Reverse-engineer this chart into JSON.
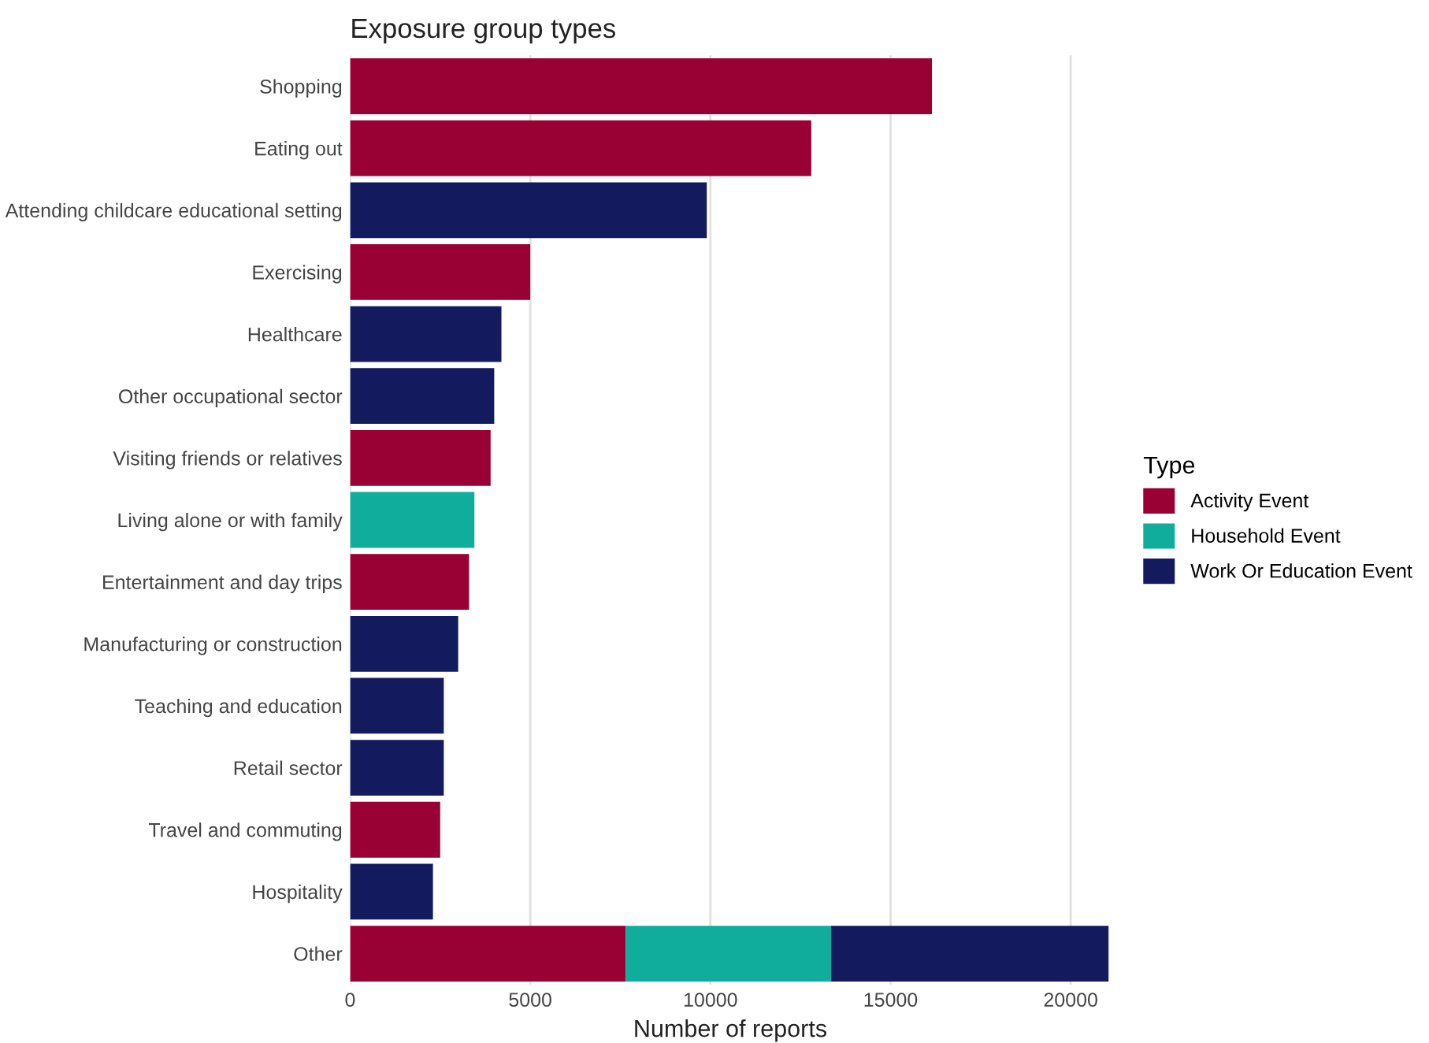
{
  "chart_data": {
    "type": "bar",
    "orientation": "horizontal",
    "stacked": true,
    "title": "Exposure group types",
    "xlabel": "Number of reports",
    "legend_title": "Type",
    "legend": "right",
    "grid": "x",
    "categories": [
      "Shopping",
      "Eating out",
      "Attending childcare educational setting",
      "Exercising",
      "Healthcare",
      "Other occupational sector",
      "Visiting friends or relatives",
      "Living alone or with family",
      "Entertainment and day trips",
      "Manufacturing or construction",
      "Teaching and education",
      "Retail sector",
      "Travel and commuting",
      "Hospitality",
      "Other"
    ],
    "series": [
      {
        "name": "Activity Event",
        "color": "#990033",
        "values": [
          16150,
          12800,
          null,
          5000,
          null,
          null,
          3900,
          null,
          3300,
          null,
          null,
          null,
          2500,
          null,
          7650
        ]
      },
      {
        "name": "Household Event",
        "color": "#10ad9c",
        "values": [
          null,
          null,
          null,
          null,
          null,
          null,
          null,
          3450,
          null,
          null,
          null,
          null,
          null,
          null,
          5700
        ]
      },
      {
        "name": "Work Or Education Event",
        "color": "#141a5e",
        "values": [
          null,
          null,
          9900,
          null,
          4200,
          4000,
          null,
          null,
          null,
          3000,
          2600,
          2600,
          null,
          2300,
          7700
        ]
      }
    ],
    "xlim": [
      0,
      21100
    ],
    "xticks": [
      0,
      5000,
      10000,
      15000,
      20000
    ]
  }
}
